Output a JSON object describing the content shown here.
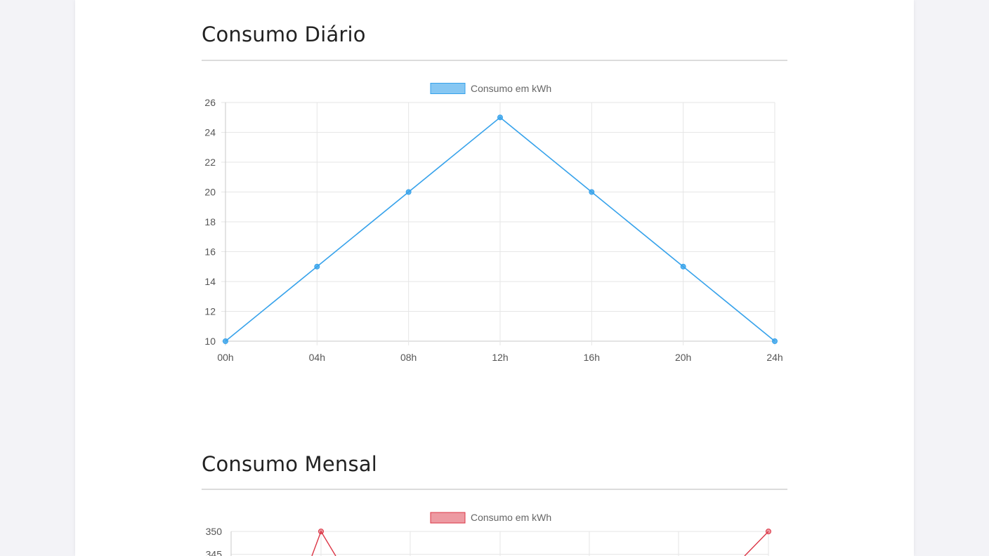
{
  "sections": [
    {
      "title": "Consumo Diário"
    },
    {
      "title": "Consumo Mensal"
    }
  ],
  "chart_data": [
    {
      "type": "line",
      "title": "Consumo Diário",
      "categories": [
        "00h",
        "04h",
        "08h",
        "12h",
        "16h",
        "20h",
        "24h"
      ],
      "series": [
        {
          "name": "Consumo em kWh",
          "values": [
            10,
            15,
            20,
            25,
            20,
            15,
            10
          ],
          "color": "#36a2eb"
        }
      ],
      "ylim": [
        10,
        26
      ],
      "yticks": [
        10,
        12,
        14,
        16,
        18,
        20,
        22,
        24,
        26
      ],
      "legend": "top-center",
      "grid": true
    },
    {
      "type": "line",
      "title": "Consumo Mensal",
      "series": [
        {
          "name": "Consumo em kWh",
          "color": "#dc3545"
        }
      ],
      "yticks_visible": [
        350,
        345
      ],
      "legend": "top-center",
      "grid": true
    }
  ]
}
